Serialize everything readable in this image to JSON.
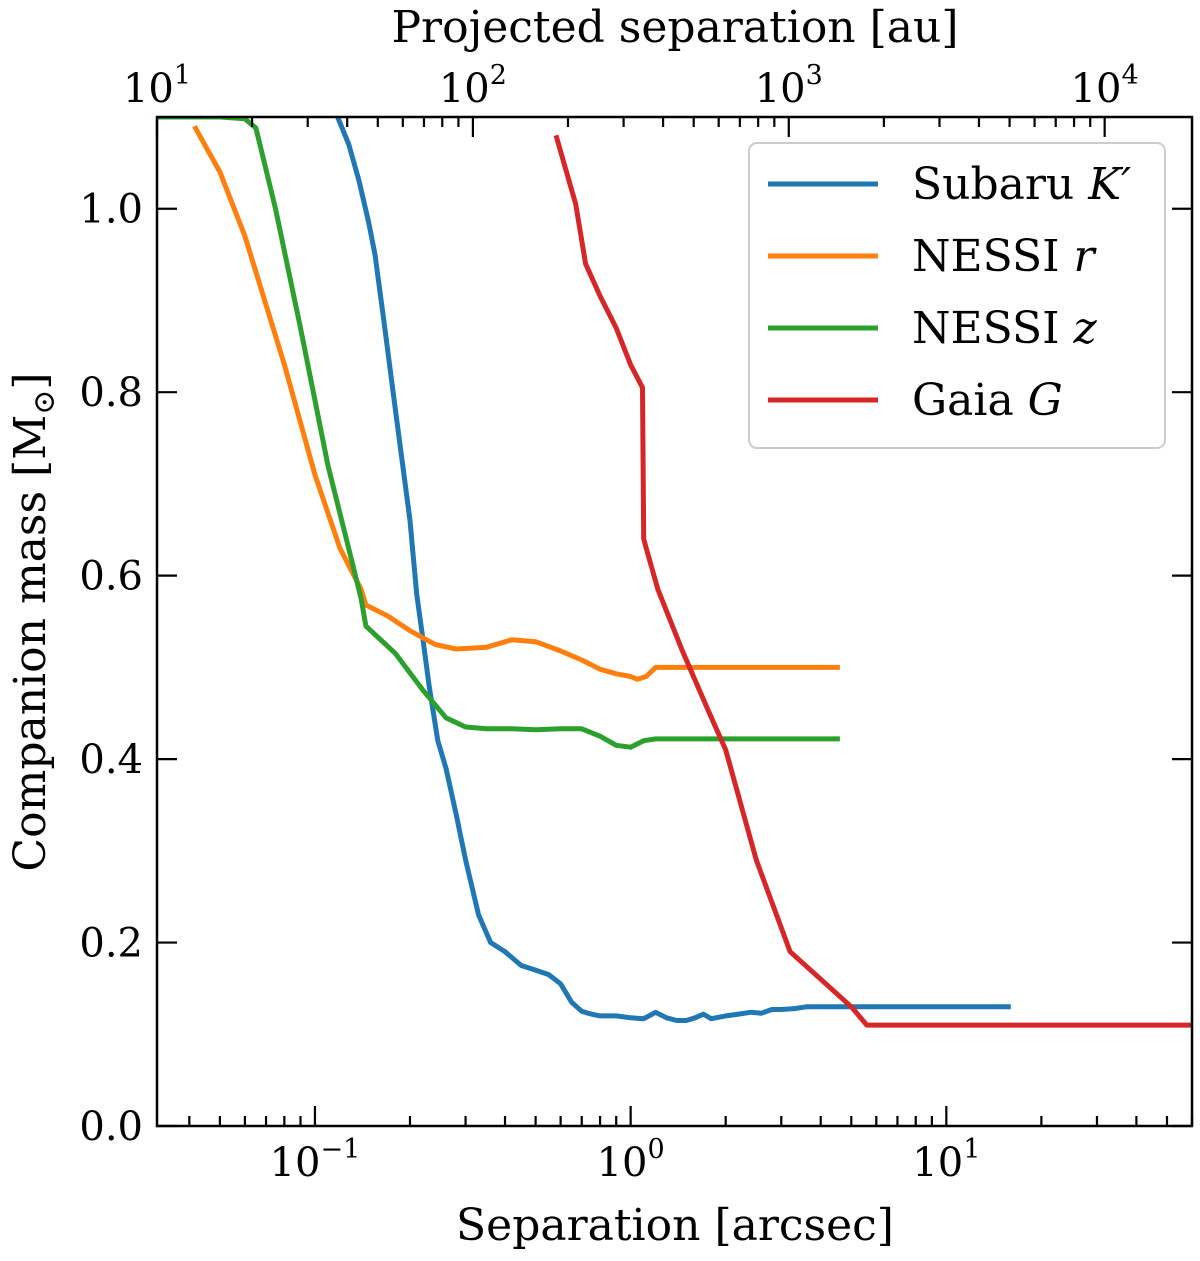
{
  "chart_data": {
    "type": "line",
    "xlabel": "Separation [arcsec]",
    "ylabel": "Companion mass [M",
    "ylabel_sub": "⊙",
    "ylabel_close": "]",
    "top_xlabel": "Projected separation [au]",
    "xscale": "log",
    "top_xscale": "log",
    "xlim": [
      0.0316,
      60
    ],
    "top_xlim": [
      10,
      18900
    ],
    "ylim": [
      0,
      1.1
    ],
    "x_ticks": [
      {
        "value": 0.1,
        "base": "10",
        "exp": "−1"
      },
      {
        "value": 1,
        "base": "10",
        "exp": "0"
      },
      {
        "value": 10,
        "base": "10",
        "exp": "1"
      }
    ],
    "top_ticks": [
      {
        "value": 10,
        "base": "10",
        "exp": "1"
      },
      {
        "value": 100,
        "base": "10",
        "exp": "2"
      },
      {
        "value": 1000,
        "base": "10",
        "exp": "3"
      },
      {
        "value": 10000,
        "base": "10",
        "exp": "4"
      }
    ],
    "y_ticks": [
      {
        "value": 0.0,
        "label": "0.0"
      },
      {
        "value": 0.2,
        "label": "0.2"
      },
      {
        "value": 0.4,
        "label": "0.4"
      },
      {
        "value": 0.6,
        "label": "0.6"
      },
      {
        "value": 0.8,
        "label": "0.8"
      },
      {
        "value": 1.0,
        "label": "1.0"
      }
    ],
    "grid": false,
    "legend_position": "top-right",
    "series": [
      {
        "name": "Subaru ",
        "name_math": "K′",
        "color": "#1f77b4",
        "x": [
          0.118,
          0.128,
          0.138,
          0.148,
          0.155,
          0.165,
          0.18,
          0.2,
          0.21,
          0.22,
          0.23,
          0.245,
          0.26,
          0.28,
          0.3,
          0.33,
          0.36,
          0.4,
          0.45,
          0.5,
          0.55,
          0.6,
          0.65,
          0.7,
          0.75,
          0.8,
          0.9,
          1.0,
          1.1,
          1.2,
          1.3,
          1.4,
          1.5,
          1.6,
          1.7,
          1.8,
          2.0,
          2.2,
          2.4,
          2.6,
          2.8,
          3.0,
          3.3,
          3.6,
          4.0,
          5.0,
          8.0,
          16.0
        ],
        "y": [
          1.1,
          1.07,
          1.03,
          0.985,
          0.95,
          0.88,
          0.78,
          0.66,
          0.58,
          0.53,
          0.48,
          0.42,
          0.39,
          0.34,
          0.29,
          0.23,
          0.2,
          0.19,
          0.175,
          0.17,
          0.165,
          0.155,
          0.135,
          0.125,
          0.122,
          0.12,
          0.12,
          0.118,
          0.117,
          0.124,
          0.118,
          0.115,
          0.115,
          0.118,
          0.122,
          0.117,
          0.12,
          0.122,
          0.124,
          0.123,
          0.127,
          0.127,
          0.128,
          0.13,
          0.13,
          0.13,
          0.13,
          0.13
        ]
      },
      {
        "name": "NESSI ",
        "name_math": "r",
        "color": "#ff7f0e",
        "x": [
          0.0415,
          0.05,
          0.06,
          0.08,
          0.1,
          0.12,
          0.14,
          0.145,
          0.17,
          0.2,
          0.24,
          0.28,
          0.35,
          0.42,
          0.5,
          0.6,
          0.7,
          0.8,
          0.9,
          1.0,
          1.05,
          1.12,
          1.2,
          1.5,
          2.0,
          3.0,
          4.6
        ],
        "y": [
          1.09,
          1.04,
          0.97,
          0.83,
          0.71,
          0.63,
          0.585,
          0.568,
          0.556,
          0.54,
          0.525,
          0.52,
          0.522,
          0.53,
          0.528,
          0.518,
          0.508,
          0.498,
          0.493,
          0.49,
          0.487,
          0.49,
          0.5,
          0.5,
          0.5,
          0.5,
          0.5
        ]
      },
      {
        "name": "NESSI ",
        "name_math": "z",
        "color": "#2ca02c",
        "x": [
          0.0316,
          0.04,
          0.05,
          0.06,
          0.065,
          0.075,
          0.09,
          0.11,
          0.13,
          0.14,
          0.145,
          0.18,
          0.22,
          0.26,
          0.3,
          0.35,
          0.42,
          0.5,
          0.6,
          0.7,
          0.8,
          0.9,
          1.0,
          1.1,
          1.2,
          1.5,
          2.0,
          3.0,
          4.6
        ],
        "y": [
          1.1,
          1.1,
          1.1,
          1.098,
          1.088,
          1.0,
          0.87,
          0.72,
          0.62,
          0.575,
          0.545,
          0.515,
          0.475,
          0.445,
          0.435,
          0.433,
          0.433,
          0.432,
          0.433,
          0.433,
          0.425,
          0.415,
          0.413,
          0.42,
          0.422,
          0.422,
          0.422,
          0.422,
          0.422
        ]
      },
      {
        "name": "Gaia ",
        "name_math": "G",
        "color": "#d62728",
        "x": [
          0.58,
          0.67,
          0.72,
          0.8,
          0.9,
          1.0,
          1.09,
          1.1,
          1.12,
          1.22,
          1.45,
          1.75,
          2.0,
          2.5,
          3.2,
          4.0,
          5.0,
          5.6,
          10.0,
          60.0
        ],
        "y": [
          1.08,
          1.005,
          0.94,
          0.905,
          0.87,
          0.83,
          0.805,
          0.64,
          0.63,
          0.585,
          0.52,
          0.455,
          0.41,
          0.29,
          0.19,
          0.16,
          0.13,
          0.11,
          0.11,
          0.11
        ]
      }
    ]
  }
}
